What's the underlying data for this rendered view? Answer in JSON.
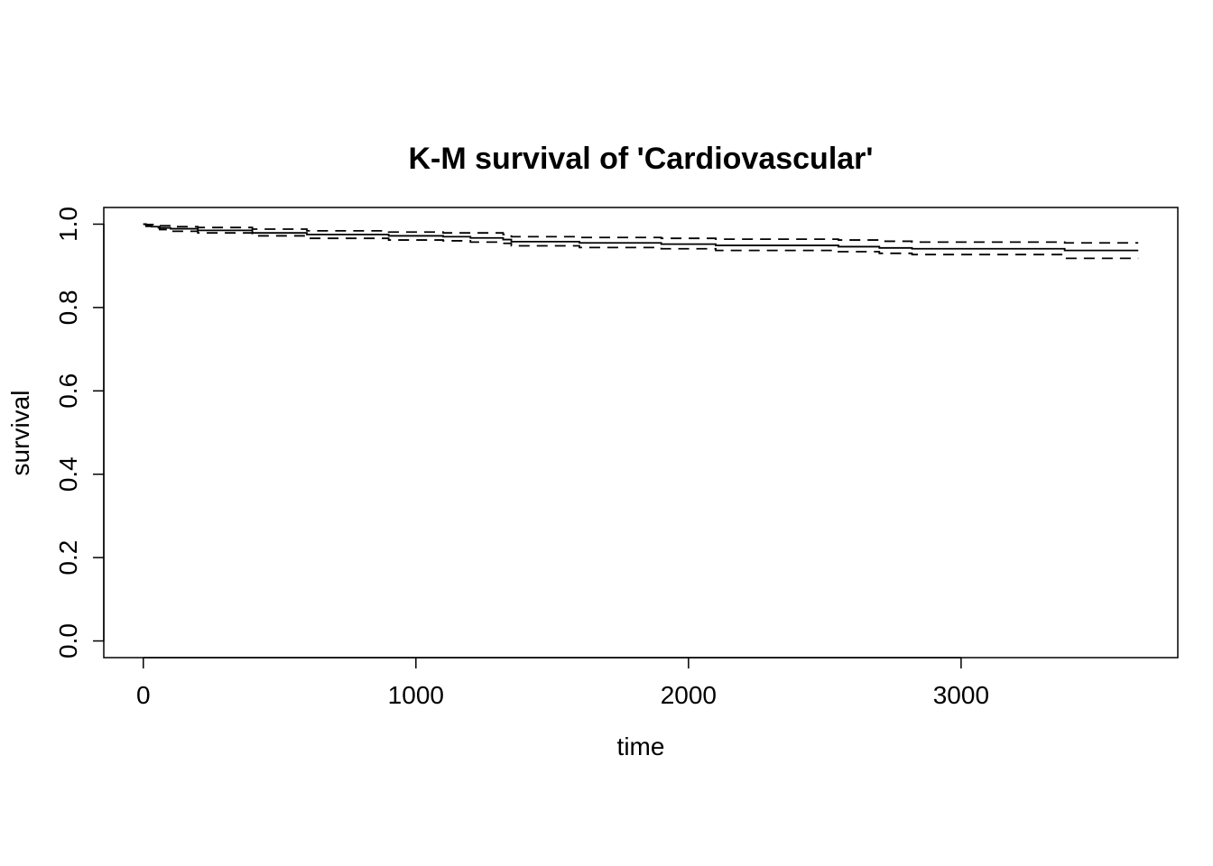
{
  "chart_data": {
    "type": "line",
    "title": "K-M survival of 'Cardiovascular'",
    "xlabel": "time",
    "ylabel": "survival",
    "xlim": [
      -145,
      3795
    ],
    "ylim": [
      -0.04,
      1.04
    ],
    "x_ticks": [
      0,
      1000,
      2000,
      3000
    ],
    "x_tick_labels": [
      "0",
      "1000",
      "2000",
      "3000"
    ],
    "y_ticks": [
      0.0,
      0.2,
      0.4,
      0.6,
      0.8,
      1.0
    ],
    "y_tick_labels": [
      "0.0",
      "0.2",
      "0.4",
      "0.6",
      "0.8",
      "1.0"
    ],
    "grid": false,
    "legend": "none",
    "series": [
      {
        "style": "solid",
        "points": [
          [
            0,
            1.0
          ],
          [
            10,
            0.997
          ],
          [
            30,
            0.994
          ],
          [
            60,
            0.991
          ],
          [
            100,
            0.989
          ],
          [
            200,
            0.985
          ],
          [
            400,
            0.979
          ],
          [
            600,
            0.975
          ],
          [
            900,
            0.972
          ],
          [
            1100,
            0.97
          ],
          [
            1200,
            0.967
          ],
          [
            1320,
            0.963
          ],
          [
            1350,
            0.958
          ],
          [
            1600,
            0.955
          ],
          [
            1900,
            0.952
          ],
          [
            2100,
            0.949
          ],
          [
            2550,
            0.946
          ],
          [
            2700,
            0.943
          ],
          [
            2820,
            0.941
          ],
          [
            3380,
            0.937
          ],
          [
            3650,
            0.937
          ]
        ]
      },
      {
        "style": "dashed",
        "points": [
          [
            0,
            1.0
          ],
          [
            10,
            0.999
          ],
          [
            60,
            0.996
          ],
          [
            100,
            0.994
          ],
          [
            200,
            0.992
          ],
          [
            400,
            0.988
          ],
          [
            600,
            0.984
          ],
          [
            900,
            0.981
          ],
          [
            1100,
            0.979
          ],
          [
            1320,
            0.975
          ],
          [
            1350,
            0.97
          ],
          [
            1600,
            0.968
          ],
          [
            1900,
            0.966
          ],
          [
            2100,
            0.964
          ],
          [
            2550,
            0.962
          ],
          [
            2700,
            0.959
          ],
          [
            2820,
            0.957
          ],
          [
            3380,
            0.955
          ],
          [
            3650,
            0.955
          ]
        ]
      },
      {
        "style": "dashed",
        "points": [
          [
            0,
            1.0
          ],
          [
            10,
            0.995
          ],
          [
            30,
            0.991
          ],
          [
            60,
            0.987
          ],
          [
            100,
            0.983
          ],
          [
            200,
            0.979
          ],
          [
            400,
            0.972
          ],
          [
            600,
            0.966
          ],
          [
            900,
            0.962
          ],
          [
            1100,
            0.96
          ],
          [
            1200,
            0.957
          ],
          [
            1320,
            0.954
          ],
          [
            1350,
            0.948
          ],
          [
            1600,
            0.944
          ],
          [
            1900,
            0.941
          ],
          [
            2100,
            0.937
          ],
          [
            2550,
            0.934
          ],
          [
            2700,
            0.93
          ],
          [
            2820,
            0.927
          ],
          [
            3380,
            0.918
          ],
          [
            3650,
            0.918
          ]
        ]
      }
    ]
  }
}
